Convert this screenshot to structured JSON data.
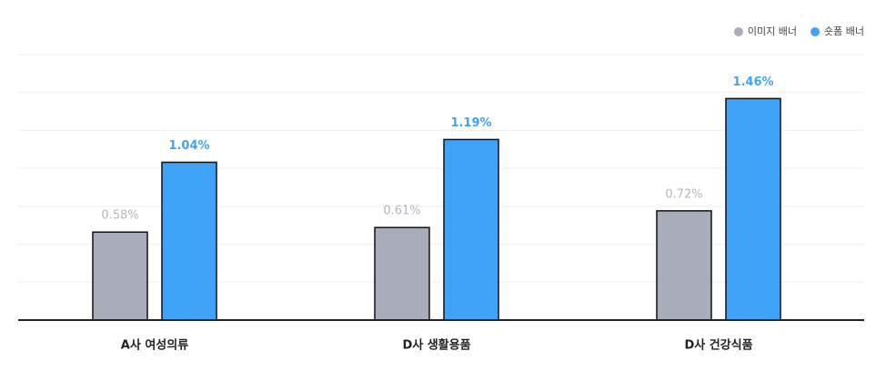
{
  "chart_data": {
    "type": "bar",
    "categories": [
      "A사 여성의류",
      "D사 생활용품",
      "D사 건강식품"
    ],
    "series": [
      {
        "name": "이미지 배너",
        "color": "#a9adb9",
        "values": [
          0.58,
          0.61,
          0.72
        ],
        "value_labels": [
          "0.58%",
          "0.61%",
          "0.72%"
        ]
      },
      {
        "name": "숏폼 배너",
        "color": "#3fa3f7",
        "values": [
          1.04,
          1.19,
          1.46
        ],
        "value_labels": [
          "1.04%",
          "1.19%",
          "1.46%"
        ]
      }
    ],
    "ylim": [
      0,
      1.75
    ],
    "yticks": [
      0,
      0.25,
      0.5,
      0.75,
      1,
      1.25,
      1.5,
      1.75
    ],
    "grid": true,
    "legend": "top-right"
  }
}
